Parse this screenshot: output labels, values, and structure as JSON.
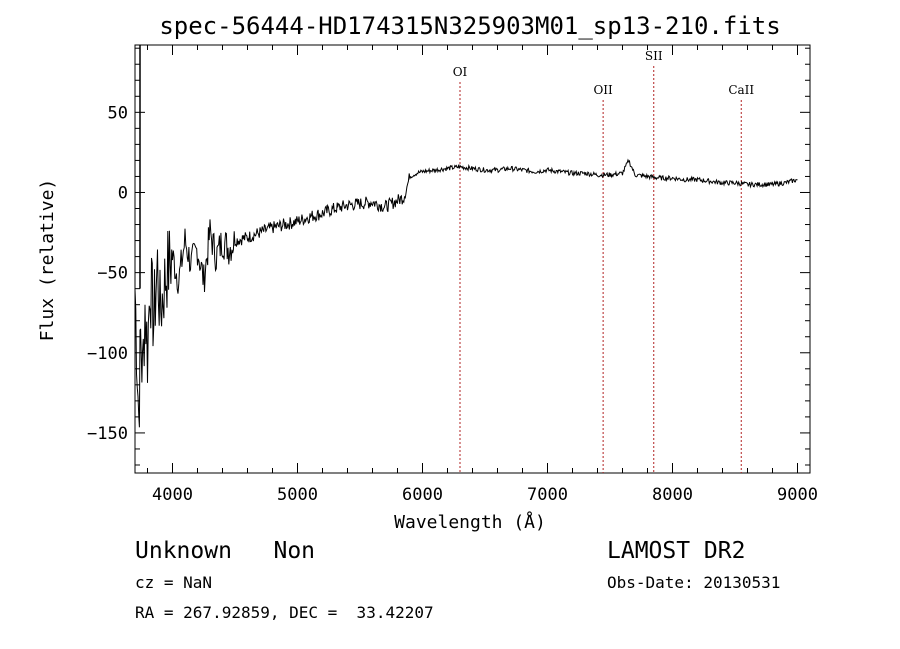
{
  "chart_data": {
    "type": "line",
    "title": "spec-56444-HD174315N325903M01_sp13-210.fits",
    "xlabel": "Wavelength (Å)",
    "ylabel": "Flux (relative)",
    "xlim": [
      3700,
      9100
    ],
    "ylim": [
      -175,
      92
    ],
    "x_ticks": [
      4000,
      5000,
      6000,
      7000,
      8000,
      9000
    ],
    "x_tick_labels": [
      "4000",
      "5000",
      "6000",
      "7000",
      "8000",
      "9000"
    ],
    "y_ticks": [
      50,
      0,
      -50,
      -100,
      -150
    ],
    "y_tick_labels": [
      "50",
      "0",
      "−50",
      "−100",
      "−150"
    ],
    "grid": false,
    "series": [
      {
        "x": [
          3700,
          3730,
          3745,
          3760,
          3780,
          3800,
          3820,
          3850,
          3880,
          3900,
          3950,
          4000,
          4050,
          4100,
          4150,
          4200,
          4250,
          4300,
          4350,
          4400,
          4450,
          4500,
          4600,
          4700,
          4800,
          4900,
          5000,
          5100,
          5200,
          5300,
          5400,
          5500,
          5600,
          5700,
          5800,
          5850,
          5900,
          5950,
          6000,
          6100,
          6200,
          6300,
          6400,
          6500,
          6600,
          6700,
          6800,
          6900,
          7000,
          7100,
          7200,
          7300,
          7400,
          7500,
          7600,
          7650,
          7700,
          7800,
          7900,
          8000,
          8100,
          8200,
          8300,
          8400,
          8500,
          8600,
          8700,
          8800,
          8900,
          9000
        ],
        "y": [
          -60,
          -140,
          -90,
          -115,
          -70,
          -100,
          -55,
          -80,
          -45,
          -75,
          -50,
          -40,
          -55,
          -30,
          -45,
          -35,
          -55,
          -25,
          -40,
          -30,
          -35,
          -30,
          -28,
          -25,
          -22,
          -20,
          -18,
          -15,
          -13,
          -10,
          -8,
          -7,
          -6,
          -9,
          -5,
          -3,
          10,
          12,
          13,
          14,
          15,
          16,
          15,
          14,
          14,
          15,
          14,
          13,
          14,
          13,
          12,
          12,
          11,
          11,
          12,
          20,
          11,
          10,
          9,
          9,
          8,
          8,
          7,
          6,
          6,
          5,
          5,
          5,
          6,
          8
        ]
      }
    ],
    "lines": [
      {
        "label": "OI",
        "x": 6300
      },
      {
        "label": "OII",
        "x": 7445
      },
      {
        "label": "SII",
        "x": 7850
      },
      {
        "label": "CaII",
        "x": 8550
      }
    ],
    "line_color": "#b22222"
  },
  "info": {
    "class": "Unknown   Non",
    "cz": "cz = NaN",
    "radec": "RA = 267.92859, DEC =  33.42207",
    "survey": "LAMOST DR2",
    "obsdate": "Obs-Date: 20130531"
  }
}
